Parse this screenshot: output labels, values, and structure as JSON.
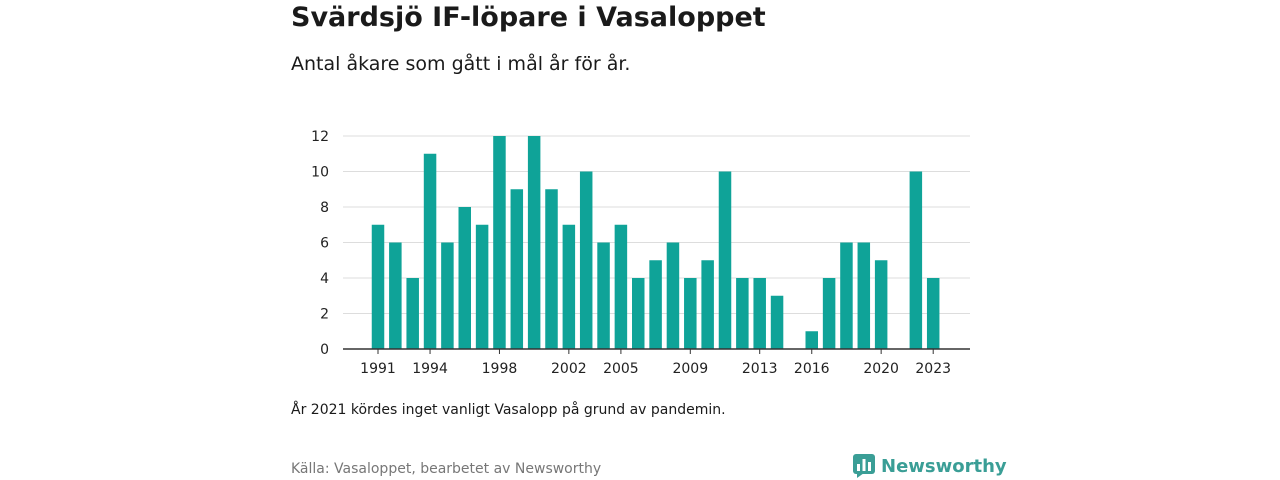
{
  "header": {
    "title": "Svärdsjö IF-löpare i Vasaloppet",
    "subtitle": "Antal åkare som gått i mål år för år."
  },
  "footer": {
    "note": "År 2021 kördes inget vanligt Vasalopp på grund av pandemin.",
    "source": "Källa: Vasaloppet, bearbetet av Newsworthy",
    "brand": "Newsworthy",
    "brand_icon": "newsworthy-chart-logo-icon"
  },
  "colors": {
    "bar": "#0fa398",
    "grid": "#dddddd",
    "axis": "#333333",
    "brand": "#3a9e96"
  },
  "chart_data": {
    "type": "bar",
    "x": [
      1991,
      1992,
      1993,
      1994,
      1995,
      1996,
      1997,
      1998,
      1999,
      2000,
      2001,
      2002,
      2003,
      2004,
      2005,
      2006,
      2007,
      2008,
      2009,
      2010,
      2011,
      2012,
      2013,
      2014,
      2015,
      2016,
      2017,
      2018,
      2019,
      2020,
      2021,
      2022,
      2023
    ],
    "values": [
      7,
      6,
      4,
      11,
      6,
      8,
      7,
      12,
      9,
      12,
      9,
      7,
      10,
      6,
      7,
      4,
      5,
      6,
      4,
      5,
      10,
      4,
      4,
      3,
      null,
      1,
      4,
      6,
      6,
      5,
      null,
      10,
      4
    ],
    "x_tick_labels": [
      "1991",
      "1994",
      "1998",
      "2002",
      "2005",
      "2009",
      "2013",
      "2016",
      "2020",
      "2023"
    ],
    "y_ticks": [
      0,
      2,
      4,
      6,
      8,
      10,
      12
    ],
    "ylim": [
      0,
      12
    ],
    "grid": true,
    "legend": "none"
  }
}
